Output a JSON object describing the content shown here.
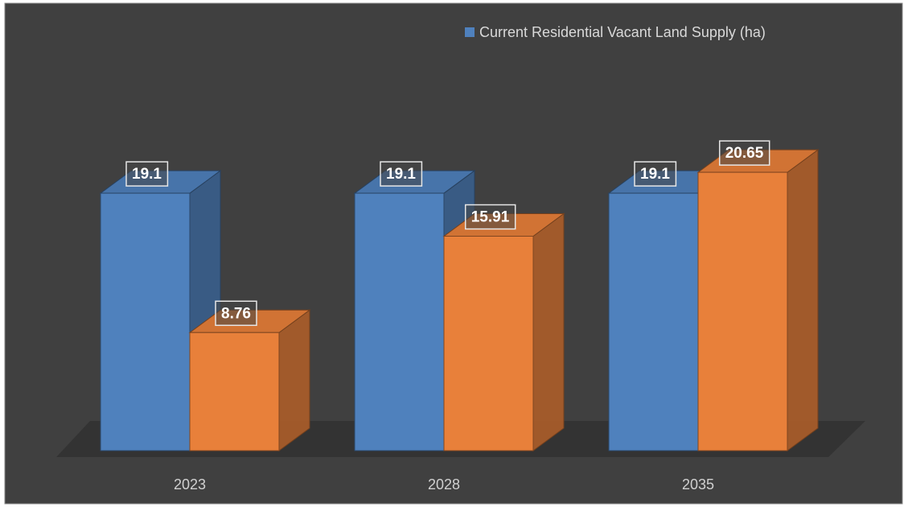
{
  "chart_data": {
    "type": "bar3d",
    "categories": [
      "2023",
      "2028",
      "2035"
    ],
    "series": [
      {
        "name": "Current Residential Vacant Land Supply (ha)",
        "color": "#4f81bd",
        "values": [
          19.1,
          19.1,
          19.1
        ]
      },
      {
        "color": "#e8803a",
        "values": [
          8.76,
          15.91,
          20.65
        ]
      }
    ],
    "legend": "top-right"
  }
}
